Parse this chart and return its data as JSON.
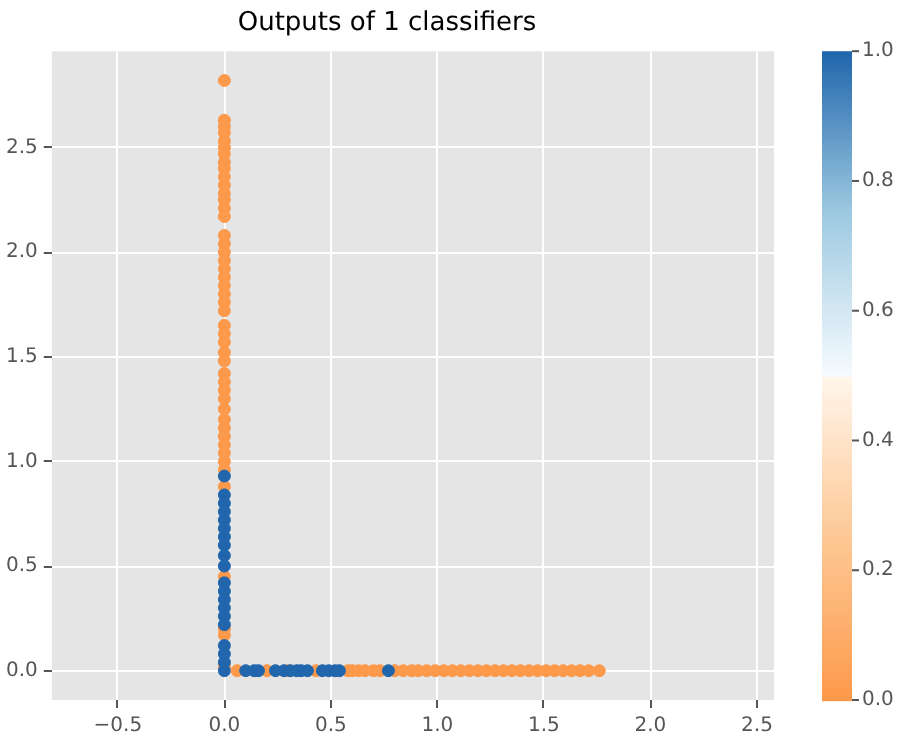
{
  "chart_data": {
    "type": "scatter",
    "title": "Outputs of 1 classifiers",
    "x": [
      0,
      0,
      0,
      0,
      0,
      0,
      0,
      0,
      0,
      0,
      0,
      0,
      0,
      0,
      0,
      0,
      0,
      0,
      0,
      0,
      0,
      0,
      0,
      0,
      0,
      0,
      0,
      0,
      0,
      0,
      0,
      0,
      0,
      0,
      0,
      0,
      0,
      0,
      0,
      0,
      0,
      0,
      0,
      0,
      0,
      0,
      0,
      0,
      0,
      0,
      0,
      0,
      0,
      0,
      0,
      0,
      0,
      0,
      0,
      0,
      0,
      0,
      0,
      0,
      0,
      0,
      0,
      0.06,
      0.2,
      0.3,
      0.43,
      0.58,
      0.6,
      0.63,
      0.66,
      0.7,
      0.73,
      0.8,
      0.84,
      0.88,
      0.91,
      0.95,
      0.99,
      1.03,
      1.07,
      1.11,
      1.15,
      1.19,
      1.23,
      1.27,
      1.31,
      1.35,
      1.39,
      1.43,
      1.47,
      1.51,
      1.55,
      1.59,
      1.63,
      1.67,
      1.71,
      1.76,
      0.1,
      0.14,
      0.16,
      0.24,
      0.28,
      0.31,
      0.34,
      0.36,
      0.39,
      0.46,
      0.49,
      0.52,
      0.54,
      0.77
    ],
    "values": [
      2.82,
      2.63,
      2.6,
      2.57,
      2.53,
      2.5,
      2.47,
      2.43,
      2.4,
      2.36,
      2.32,
      2.28,
      2.25,
      2.21,
      2.17,
      2.08,
      2.04,
      2.0,
      1.96,
      1.92,
      1.88,
      1.84,
      1.8,
      1.76,
      1.72,
      1.65,
      1.61,
      1.57,
      1.52,
      1.48,
      1.42,
      1.38,
      1.34,
      1.3,
      1.25,
      1.2,
      1.16,
      1.12,
      1.08,
      1.04,
      1.0,
      0.96,
      0.88,
      0.45,
      0.2,
      0.17,
      0.02,
      0.93,
      0.84,
      0.8,
      0.76,
      0.72,
      0.68,
      0.64,
      0.6,
      0.55,
      0.5,
      0.42,
      0.38,
      0.34,
      0.3,
      0.26,
      0.22,
      0.12,
      0.08,
      0.04,
      0.0,
      0,
      0,
      0,
      0,
      0,
      0,
      0,
      0,
      0,
      0,
      0,
      0,
      0,
      0,
      0,
      0,
      0,
      0,
      0,
      0,
      0,
      0,
      0,
      0,
      0,
      0,
      0,
      0,
      0,
      0,
      0,
      0,
      0,
      0,
      0,
      0,
      0,
      0,
      0,
      0,
      0,
      0,
      0,
      0,
      0,
      0,
      0,
      0,
      0
    ],
    "cvalues": [
      0,
      0,
      0,
      0,
      0,
      0,
      0,
      0,
      0,
      0,
      0,
      0,
      0,
      0,
      0,
      0,
      0,
      0,
      0,
      0,
      0,
      0,
      0,
      0,
      0,
      0,
      0,
      0,
      0,
      0,
      0,
      0,
      0,
      0,
      0,
      0,
      0,
      0,
      0,
      0,
      0,
      0,
      0,
      0,
      0,
      0,
      0,
      1,
      1,
      1,
      1,
      1,
      1,
      1,
      1,
      1,
      1,
      1,
      1,
      1,
      1,
      1,
      1,
      1,
      1,
      1,
      1,
      0,
      0,
      0,
      0,
      0,
      0,
      0,
      0,
      0,
      0,
      0,
      0,
      0,
      0,
      0,
      0,
      0,
      0,
      0,
      0,
      0,
      0,
      0,
      0,
      0,
      0,
      0,
      0,
      0,
      0,
      0,
      0,
      0,
      0,
      0,
      1,
      1,
      1,
      1,
      1,
      1,
      1,
      1,
      1,
      1,
      1,
      1,
      1,
      1
    ],
    "clim": [
      0,
      1
    ],
    "cticks": [
      {
        "value": 0,
        "label": "0.0"
      },
      {
        "value": 0.2,
        "label": "0.2"
      },
      {
        "value": 0.4,
        "label": "0.4"
      },
      {
        "value": 0.6,
        "label": "0.6"
      },
      {
        "value": 0.8,
        "label": "0.8"
      },
      {
        "value": 1,
        "label": "1.0"
      }
    ],
    "xlim": [
      -0.81,
      2.58
    ],
    "xticks": [
      {
        "value": -0.5,
        "label": "−0.5"
      },
      {
        "value": 0,
        "label": "0.0"
      },
      {
        "value": 0.5,
        "label": "0.5"
      },
      {
        "value": 1,
        "label": "1.0"
      },
      {
        "value": 1.5,
        "label": "1.5"
      },
      {
        "value": 2,
        "label": "2.0"
      },
      {
        "value": 2.5,
        "label": "2.5"
      }
    ],
    "ylim": [
      -0.14,
      2.96
    ],
    "yticks": [
      {
        "value": 0,
        "label": "0.0"
      },
      {
        "value": 0.5,
        "label": "0.5"
      },
      {
        "value": 1,
        "label": "1.0"
      },
      {
        "value": 1.5,
        "label": "1.5"
      },
      {
        "value": 2,
        "label": "2.0"
      },
      {
        "value": 2.5,
        "label": "2.5"
      }
    ],
    "grid": true,
    "marker": "circle"
  }
}
